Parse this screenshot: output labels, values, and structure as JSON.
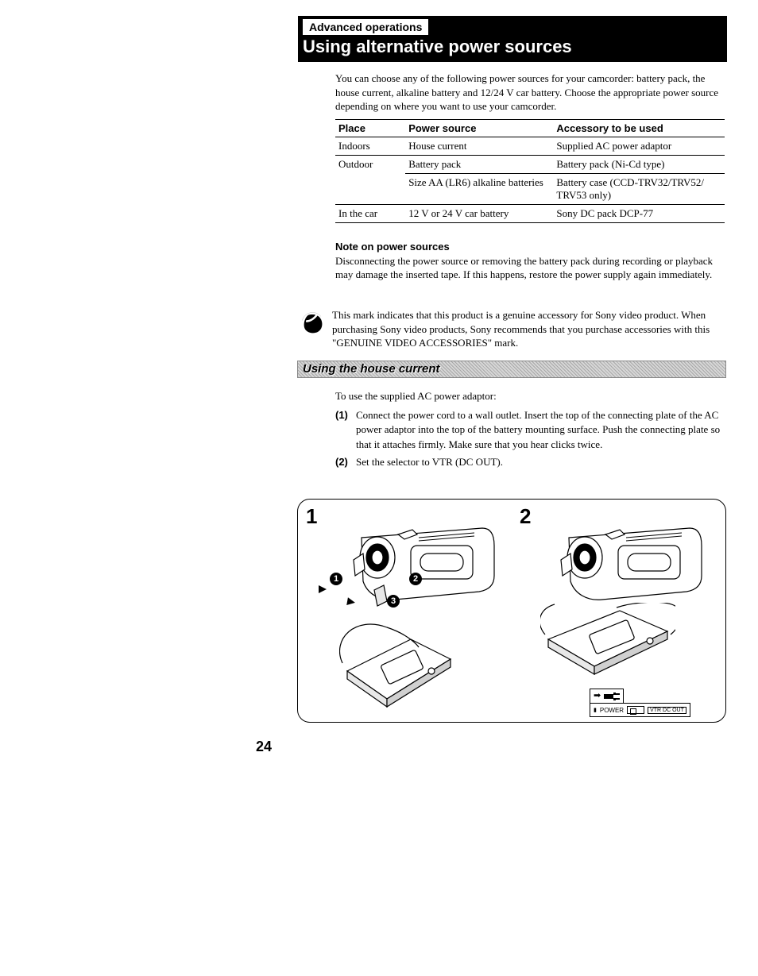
{
  "header": {
    "adv_label": "Advanced operations",
    "title": "Using alternative power sources"
  },
  "intro": "You can choose any of the following power sources for your camcorder: battery pack, the house current, alkaline battery and 12/24 V car battery. Choose the appropriate power source depending on where you want to use your camcorder.",
  "table": {
    "columns": [
      "Place",
      "Power source",
      "Accessory to be used"
    ],
    "rows": [
      [
        "Indoors",
        "House current",
        "Supplied AC power adaptor"
      ],
      [
        "Outdoor",
        "Battery pack",
        "Battery pack (Ni-Cd type)"
      ],
      [
        "",
        "Size AA (LR6) alkaline batteries",
        "Battery case (CCD-TRV32/TRV52/ TRV53 only)"
      ],
      [
        "In the car",
        "12 V or 24 V car battery",
        "Sony DC pack DCP-77"
      ]
    ],
    "col_widths": [
      "18%",
      "38%",
      "44%"
    ]
  },
  "note": {
    "title": "Note on power sources",
    "body": "Disconnecting the power source or removing the battery pack during recording or playback may damage the inserted tape. If this happens, restore the power supply again immediately."
  },
  "mark": {
    "text": "This mark indicates that this product is a genuine accessory for Sony video product. When purchasing Sony video products, Sony recommends that you purchase accessories with this \"GENUINE VIDEO ACCESSORIES\" mark.",
    "icon_color": "#000000",
    "arc_label": "GENUINE VIDEO ACCESSORIES"
  },
  "subhead": "Using the house current",
  "body2": {
    "intro": "To use the supplied AC power adaptor:",
    "steps": [
      {
        "n": "(1)",
        "t": "Connect the power cord to a wall outlet. Insert the top of the connecting plate of the AC power adaptor into the top of the battery mounting surface. Push the connecting plate so that it attaches firmly. Make sure that you hear clicks twice."
      },
      {
        "n": "(2)",
        "t": "Set the selector to VTR (DC OUT)."
      }
    ]
  },
  "figure": {
    "panels": [
      {
        "num": "1",
        "callouts": [
          "1",
          "2",
          "3"
        ]
      },
      {
        "num": "2",
        "switch": {
          "power": "POWER",
          "vtr": "VTR DC OUT"
        }
      }
    ],
    "line_color": "#000000",
    "fill_color": "#ffffff"
  },
  "page_number": "24"
}
